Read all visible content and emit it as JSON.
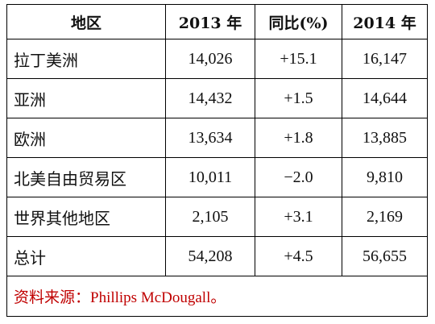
{
  "table": {
    "header": [
      "地区",
      "2013 年",
      "同比(%)",
      "2014 年"
    ],
    "rows": [
      [
        "拉丁美洲",
        "14,026",
        "+15.1",
        "16,147"
      ],
      [
        "亚洲",
        "14,432",
        "+1.5",
        "14,644"
      ],
      [
        "欧洲",
        "13,634",
        "+1.8",
        "13,885"
      ],
      [
        "北美自由贸易区",
        "10,011",
        "−2.0",
        "9,810"
      ],
      [
        "世界其他地区",
        "2,105",
        "+3.1",
        "2,169"
      ],
      [
        "总计",
        "54,208",
        "+4.5",
        "56,655"
      ]
    ],
    "source": "资料来源：Phillips McDougall。"
  }
}
